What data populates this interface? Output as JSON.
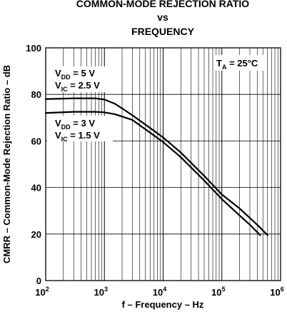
{
  "chart_data": {
    "type": "line",
    "title": [
      "COMMON-MODE REJECTION RATIO",
      "vs",
      "FREQUENCY"
    ],
    "xlabel": "f – Frequency – Hz",
    "ylabel": "CMRR – Common-Mode Rejection Ratio – dB",
    "x_scale": "log",
    "xlim": [
      100,
      1000000
    ],
    "ylim": [
      0,
      100
    ],
    "x_ticks": [
      {
        "value": 100,
        "base": "10",
        "exp": "2"
      },
      {
        "value": 1000,
        "base": "10",
        "exp": "3"
      },
      {
        "value": 10000,
        "base": "10",
        "exp": "4"
      },
      {
        "value": 100000,
        "base": "10",
        "exp": "5"
      },
      {
        "value": 1000000,
        "base": "10",
        "exp": "6"
      }
    ],
    "y_ticks": [
      "0",
      "20",
      "40",
      "60",
      "80",
      "100"
    ],
    "grid": true,
    "annotations": {
      "temp": {
        "main": "T",
        "sub": "A",
        "rest": " = 25°C"
      },
      "series1_line1": {
        "main": "V",
        "sub": "DD",
        "rest": " = 5 V"
      },
      "series1_line2": {
        "main": "V",
        "sub": "IC",
        "rest": " = 2.5 V"
      },
      "series2_line1": {
        "main": "V",
        "sub": "DD",
        "rest": " = 3 V"
      },
      "series2_line2": {
        "main": "V",
        "sub": "IC",
        "rest": " = 1.5 V"
      }
    },
    "series": [
      {
        "x": [
          100,
          300,
          700,
          1000,
          1500,
          2000,
          3000,
          5000,
          10000,
          20000,
          50000,
          100000,
          200000,
          400000,
          600000
        ],
        "y": [
          78,
          78.3,
          78.3,
          77.8,
          76,
          74,
          71,
          67,
          61.5,
          55,
          45,
          37,
          31,
          24,
          19.5
        ],
        "color": "#000000"
      },
      {
        "x": [
          100,
          300,
          700,
          1000,
          1500,
          2000,
          3000,
          5000,
          10000,
          20000,
          50000,
          100000,
          200000,
          300000,
          450000
        ],
        "y": [
          72,
          72.5,
          72.5,
          72.3,
          71.5,
          70.5,
          69,
          65,
          59.5,
          53,
          43,
          35,
          28,
          24,
          19.5
        ],
        "color": "#000000"
      }
    ]
  }
}
